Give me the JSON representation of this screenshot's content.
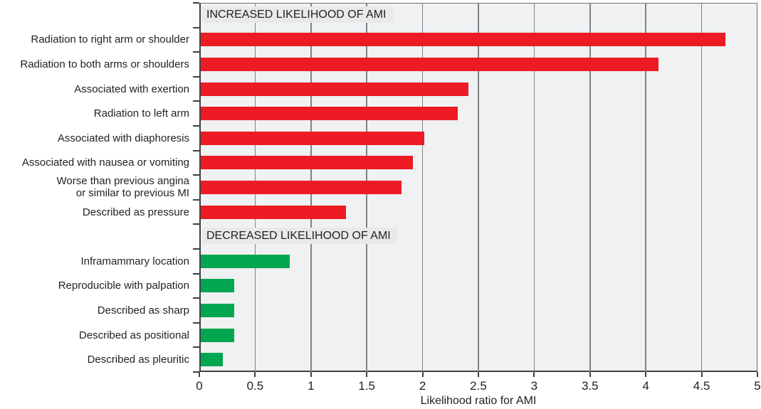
{
  "chart_data": {
    "type": "bar",
    "orientation": "horizontal",
    "title": "",
    "xlabel": "Likelihood ratio for AMI",
    "ylabel": "",
    "xlim": [
      0,
      5
    ],
    "xticks": [
      "0",
      "0.5",
      "1",
      "1.5",
      "2",
      "2.5",
      "3",
      "3.5",
      "4",
      "4.5",
      "5"
    ],
    "grid": true,
    "legend": "none",
    "sections": [
      {
        "header": "INCREASED LIKELIHOOD OF AMI",
        "color": "#EC1B24",
        "bars": [
          {
            "label": "Radiation to right arm or shoulder",
            "value": 4.7
          },
          {
            "label": "Radiation to both arms or shoulders",
            "value": 4.1
          },
          {
            "label": "Associated with exertion",
            "value": 2.4
          },
          {
            "label": "Radiation to left arm",
            "value": 2.3
          },
          {
            "label": "Associated with diaphoresis",
            "value": 2.0
          },
          {
            "label": "Associated with nausea or vomiting",
            "value": 1.9
          },
          {
            "label": "Worse than previous angina\nor similar to previous MI",
            "value": 1.8
          },
          {
            "label": "Described as pressure",
            "value": 1.3
          }
        ]
      },
      {
        "header": "DECREASED LIKELIHOOD OF AMI",
        "color": "#00A650",
        "bars": [
          {
            "label": "Inframammary location",
            "value": 0.8
          },
          {
            "label": "Reproducible with palpation",
            "value": 0.3
          },
          {
            "label": "Described as sharp",
            "value": 0.3
          },
          {
            "label": "Described as positional",
            "value": 0.3
          },
          {
            "label": "Described as pleuritic",
            "value": 0.2
          }
        ]
      }
    ],
    "colors": {
      "increased_bar": "#EC1B24",
      "decreased_bar": "#00A650",
      "plot_background": "#F0F1F2",
      "header_background": "#E8E9EA",
      "gridline": "#808285",
      "axis": "#414042",
      "frame": "#6D6E71",
      "text": "#231F20"
    }
  }
}
